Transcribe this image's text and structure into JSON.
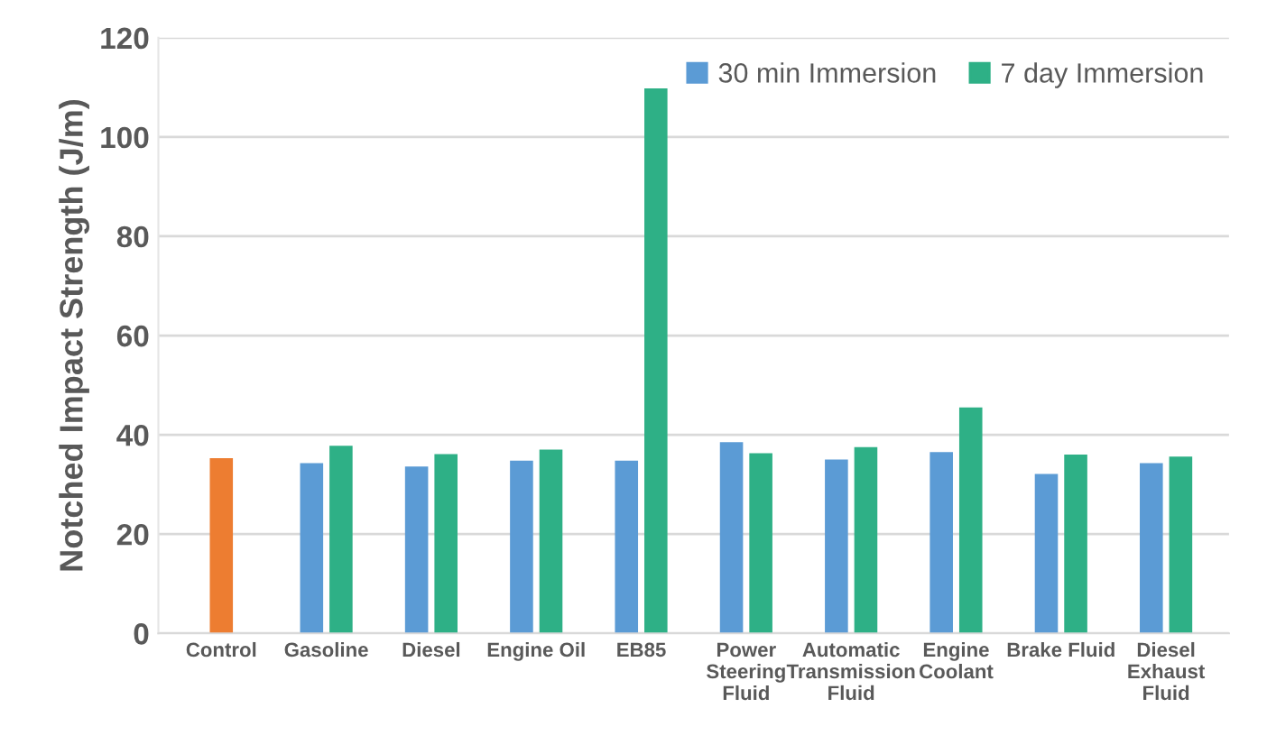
{
  "chart_data": {
    "type": "bar",
    "ylabel": "Notched Impact Strength (J/m)",
    "categories": [
      "Control",
      "Gasoline",
      "Diesel",
      "Engine Oil",
      "EB85",
      "Power Steering Fluid",
      "Automatic Transmission Fluid",
      "Engine Coolant",
      "Brake Fluid",
      "Diesel Exhaust Fluid"
    ],
    "series": [
      {
        "color": "#ed7d31",
        "values": [
          35.3,
          null,
          null,
          null,
          null,
          null,
          null,
          null,
          null,
          null
        ]
      },
      {
        "name": "30 min Immersion",
        "color": "#5b9bd5",
        "values": [
          null,
          34.3,
          33.6,
          34.8,
          34.8,
          38.5,
          35.0,
          36.5,
          32.1,
          34.3
        ]
      },
      {
        "name": "7 day Immersion",
        "color": "#2eb086",
        "values": [
          null,
          37.8,
          36.1,
          37.0,
          109.8,
          36.3,
          37.5,
          45.5,
          36.0,
          35.6
        ]
      }
    ],
    "ylim": [
      0,
      120
    ],
    "yticks": [
      0,
      20,
      40,
      60,
      80,
      100,
      120
    ],
    "grid": "y",
    "legend": "top right"
  }
}
